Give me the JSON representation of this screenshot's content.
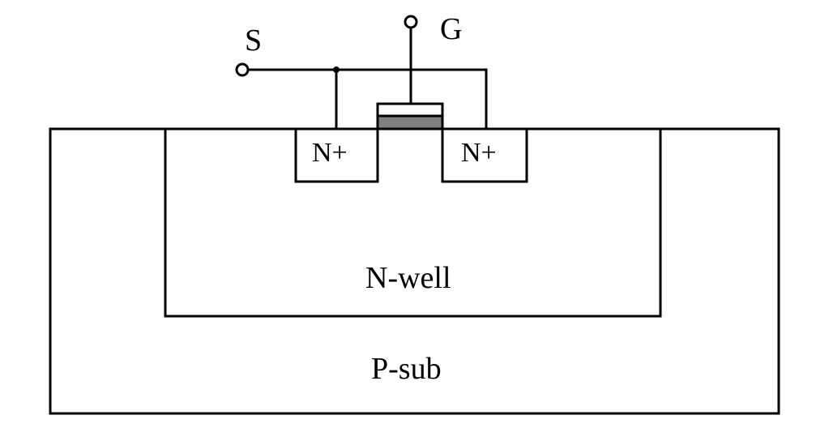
{
  "labels": {
    "source": "S",
    "gate": "G",
    "n_plus_left": "N+",
    "n_plus_right": "N+",
    "n_well": "N-well",
    "p_sub": "P-sub"
  },
  "colors": {
    "stroke": "#000000",
    "background": "#ffffff",
    "gate_oxide": "#808080"
  }
}
